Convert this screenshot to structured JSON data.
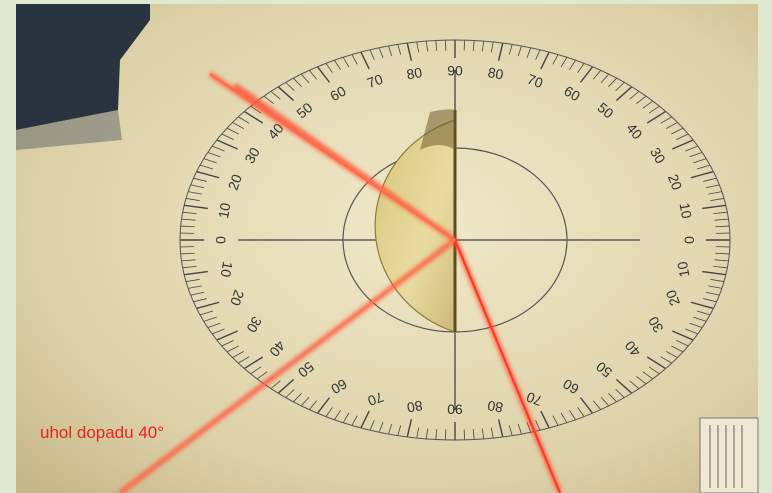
{
  "caption": "uhol dopadu 40°",
  "protractor": {
    "scale_labels_top": [
      "90",
      "80",
      "70",
      "60",
      "50",
      "40",
      "30",
      "20",
      "10",
      "0"
    ],
    "scale_labels_bottom": [
      "90",
      "80",
      "70",
      "60",
      "50",
      "40",
      "30",
      "20",
      "10",
      "0"
    ]
  },
  "laser": {
    "incident_angle_deg": 40,
    "color": "#ff4a2e"
  },
  "colors": {
    "frame": "#dfe9cf",
    "paper": "#e6dcb8",
    "dark_corner": "#2a3440",
    "caption": "#e8231d"
  }
}
